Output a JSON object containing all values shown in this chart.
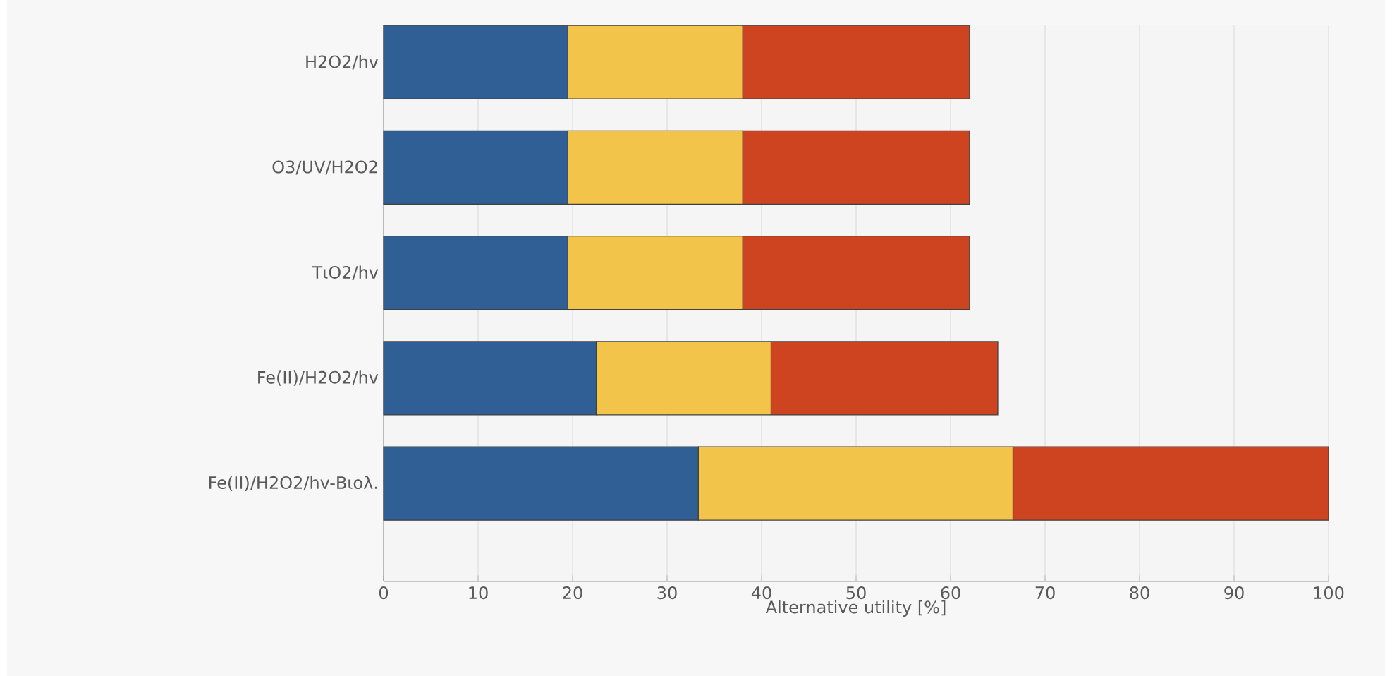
{
  "chart_data": {
    "type": "bar",
    "orientation": "horizontal",
    "stacked": true,
    "xlabel": "Alternative utility [%]",
    "categories": [
      "H2O2/hv",
      "O3/UV/H2O2",
      "TιO2/hv",
      "Fe(II)/H2O2/hv",
      "Fe(II)/H2O2/hv-Βιολ."
    ],
    "series": [
      {
        "color": "#2f5f95",
        "values": [
          19.5,
          19.5,
          19.5,
          22.5,
          33.3
        ]
      },
      {
        "color": "#f3c44a",
        "values": [
          18.5,
          18.5,
          18.5,
          18.5,
          33.3
        ]
      },
      {
        "color": "#cf4420",
        "values": [
          24,
          24,
          24,
          24,
          33.4
        ]
      }
    ],
    "xlim": [
      0,
      100
    ],
    "xticks": [
      0,
      10,
      20,
      30,
      40,
      50,
      60,
      70,
      80,
      90,
      100
    ],
    "grid": "x"
  }
}
